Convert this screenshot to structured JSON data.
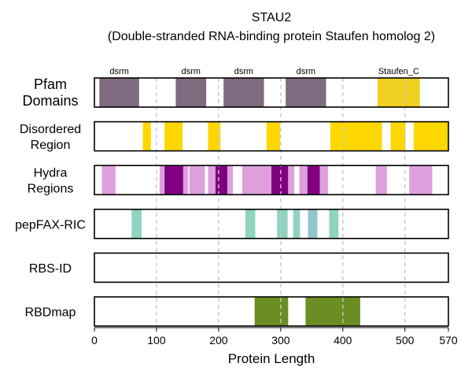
{
  "chart_data": {
    "type": "bar",
    "title_line1": "STAU2",
    "title_line2": "(Double-stranded RNA-binding protein Staufen homolog 2)",
    "xlabel": "Protein Length",
    "xlim": [
      0,
      570
    ],
    "xticks": [
      0,
      100,
      200,
      300,
      400,
      500,
      570
    ],
    "grid_x": [
      100,
      200,
      300,
      400,
      500
    ],
    "tracks": [
      {
        "name": "Pfam Domains",
        "label_lines": [
          "Pfam",
          "Domains"
        ],
        "large": true,
        "segments": [
          {
            "start": 8,
            "end": 72,
            "color": "#7f6a80",
            "label": "dsrm"
          },
          {
            "start": 131,
            "end": 180,
            "color": "#7f6a80",
            "label": "dsrm"
          },
          {
            "start": 208,
            "end": 273,
            "color": "#7f6a80",
            "label": "dsrm"
          },
          {
            "start": 308,
            "end": 373,
            "color": "#7f6a80",
            "label": "dsrm"
          },
          {
            "start": 456,
            "end": 524,
            "color": "#f0d020",
            "label": "Staufen_C"
          }
        ]
      },
      {
        "name": "Disordered Region",
        "label_lines": [
          "Disordered",
          "Region"
        ],
        "large": false,
        "segments": [
          {
            "start": 78,
            "end": 91,
            "color": "#ffd700"
          },
          {
            "start": 113,
            "end": 142,
            "color": "#ffd700"
          },
          {
            "start": 183,
            "end": 203,
            "color": "#ffd700"
          },
          {
            "start": 277,
            "end": 299,
            "color": "#ffd700"
          },
          {
            "start": 380,
            "end": 463,
            "color": "#ffd700"
          },
          {
            "start": 477,
            "end": 501,
            "color": "#ffd700"
          },
          {
            "start": 514,
            "end": 570,
            "color": "#ffd700"
          }
        ]
      },
      {
        "name": "Hydra Regions",
        "label_lines": [
          "Hydra",
          "Regions"
        ],
        "large": false,
        "segments": [
          {
            "start": 12,
            "end": 34,
            "color": "#dda0dd"
          },
          {
            "start": 105,
            "end": 114,
            "color": "#dda0dd"
          },
          {
            "start": 113,
            "end": 143,
            "color": "#800080"
          },
          {
            "start": 143,
            "end": 151,
            "color": "#dda0dd"
          },
          {
            "start": 153,
            "end": 178,
            "color": "#dda0dd"
          },
          {
            "start": 183,
            "end": 195,
            "color": "#dda0dd"
          },
          {
            "start": 195,
            "end": 214,
            "color": "#800080"
          },
          {
            "start": 214,
            "end": 223,
            "color": "#dda0dd"
          },
          {
            "start": 238,
            "end": 285,
            "color": "#dda0dd"
          },
          {
            "start": 285,
            "end": 312,
            "color": "#800080"
          },
          {
            "start": 312,
            "end": 322,
            "color": "#dda0dd"
          },
          {
            "start": 330,
            "end": 343,
            "color": "#dda0dd"
          },
          {
            "start": 343,
            "end": 363,
            "color": "#800080"
          },
          {
            "start": 363,
            "end": 376,
            "color": "#dda0dd"
          },
          {
            "start": 453,
            "end": 471,
            "color": "#dda0dd"
          },
          {
            "start": 507,
            "end": 544,
            "color": "#dda0dd"
          }
        ]
      },
      {
        "name": "pepFAX-RIC",
        "label_lines": [
          "pepFAX-RIC"
        ],
        "large": false,
        "segments": [
          {
            "start": 60,
            "end": 76,
            "color": "#8fd3c1"
          },
          {
            "start": 243,
            "end": 259,
            "color": "#8fd3c1"
          },
          {
            "start": 294,
            "end": 311,
            "color": "#8fd3c1"
          },
          {
            "start": 320,
            "end": 331,
            "color": "#8fd3c1"
          },
          {
            "start": 344,
            "end": 359,
            "color": "#93c6cc"
          },
          {
            "start": 378,
            "end": 393,
            "color": "#8fd3c1"
          }
        ]
      },
      {
        "name": "RBS-ID",
        "label_lines": [
          "RBS-ID"
        ],
        "large": false,
        "segments": []
      },
      {
        "name": "RBDmap",
        "label_lines": [
          "RBDmap"
        ],
        "large": false,
        "segments": [
          {
            "start": 258,
            "end": 312,
            "color": "#6b8e23"
          },
          {
            "start": 340,
            "end": 428,
            "color": "#6b8e23"
          }
        ]
      }
    ]
  }
}
